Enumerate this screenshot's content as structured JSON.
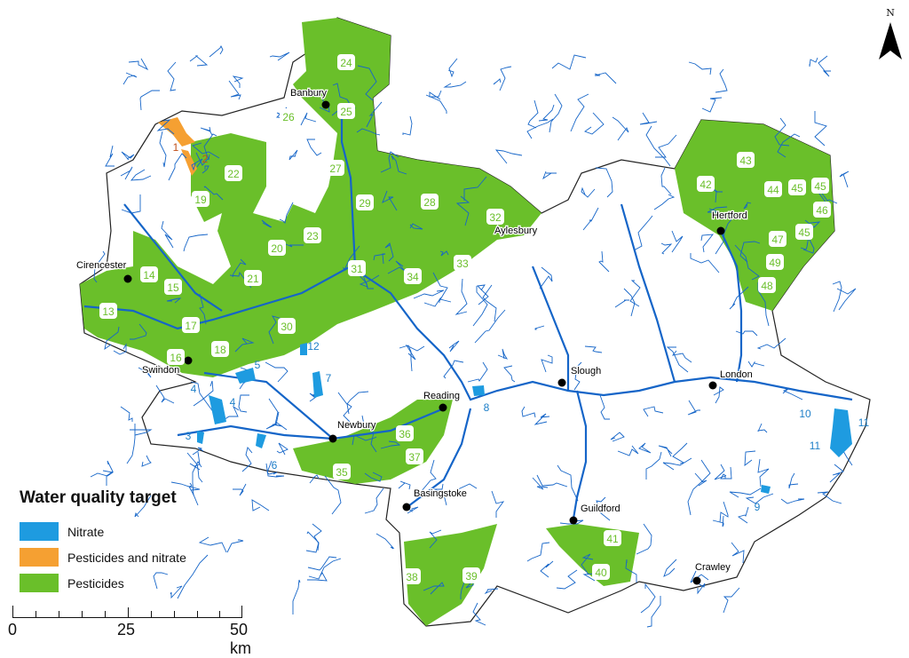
{
  "legend": {
    "title": "Water quality target",
    "items": [
      {
        "label": "Nitrate",
        "color": "#1e9be0"
      },
      {
        "label": "Pesticides and nitrate",
        "color": "#f5a032"
      },
      {
        "label": "Pesticides",
        "color": "#6abf2a"
      }
    ]
  },
  "scale": {
    "ticks": [
      "0",
      "25",
      "50 km"
    ]
  },
  "north_arrow": {
    "label": "N",
    "icon": "north-arrow-icon"
  },
  "colors": {
    "river": "#1565c8",
    "boundary": "#222222",
    "pesticide_label_text": "#6abf2a",
    "nitrate_label_text": "#1e7fc8",
    "both_label_text": "#c0501a"
  },
  "towns": [
    "Banbury",
    "Cirencester",
    "Swindon",
    "Aylesbury",
    "Reading",
    "Newbury",
    "Basingstoke",
    "Slough",
    "Guildford",
    "Hertford",
    "London",
    "Crawley"
  ],
  "catchments": {
    "pesticides": [
      "13",
      "14",
      "15",
      "16",
      "17",
      "18",
      "19",
      "20",
      "21",
      "22",
      "23",
      "24",
      "25",
      "26",
      "27",
      "28",
      "29",
      "30",
      "31",
      "32",
      "33",
      "34",
      "35",
      "36",
      "37",
      "38",
      "39",
      "40",
      "41",
      "42",
      "43",
      "44",
      "45",
      "45",
      "46",
      "45",
      "47",
      "49",
      "48"
    ],
    "nitrate": [
      "3",
      "4",
      "4",
      "5",
      "6",
      "7",
      "8",
      "9",
      "10",
      "11",
      "11",
      "12"
    ],
    "pesticides_and_nitrate": [
      "1",
      "2"
    ]
  }
}
